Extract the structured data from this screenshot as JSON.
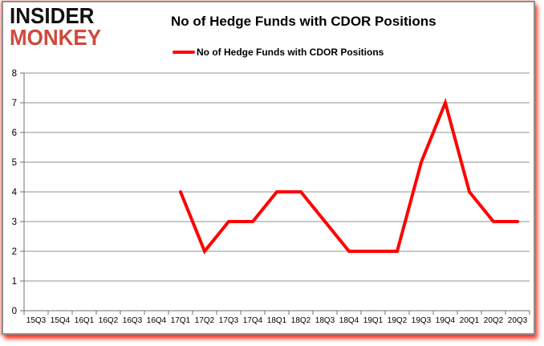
{
  "brand": {
    "line1": "INSIDER",
    "line2": "MONKEY"
  },
  "header": {
    "title": "No of Hedge Funds with CDOR Positions"
  },
  "legend": {
    "label": "No of Hedge Funds with CDOR Positions"
  },
  "colors": {
    "series": "#FF0000",
    "brand_black": "#111111",
    "brand_red": "#d0493b",
    "gridline": "#909090",
    "axis": "#707070",
    "label_text": "#000000",
    "frame_border": "#8f8f8f",
    "glow": "#fa1905"
  },
  "chart_data": {
    "type": "line",
    "title": "No of Hedge Funds with CDOR Positions",
    "xlabel": "",
    "ylabel": "",
    "categories": [
      "15Q3",
      "15Q4",
      "16Q1",
      "16Q2",
      "16Q3",
      "16Q4",
      "17Q1",
      "17Q2",
      "17Q3",
      "17Q4",
      "18Q1",
      "18Q2",
      "18Q3",
      "18Q4",
      "19Q1",
      "19Q2",
      "19Q3",
      "19Q4",
      "20Q1",
      "20Q2",
      "20Q3"
    ],
    "series": [
      {
        "name": "No of Hedge Funds with CDOR Positions",
        "color": "#FF0000",
        "values": [
          null,
          null,
          null,
          null,
          null,
          null,
          4,
          2,
          3,
          3,
          4,
          4,
          3,
          2,
          2,
          2,
          5,
          7,
          4,
          3,
          3
        ]
      }
    ],
    "ylim": [
      0,
      8
    ],
    "ytick_step": 1,
    "grid": "horizontal",
    "legend_position": "top-center"
  }
}
